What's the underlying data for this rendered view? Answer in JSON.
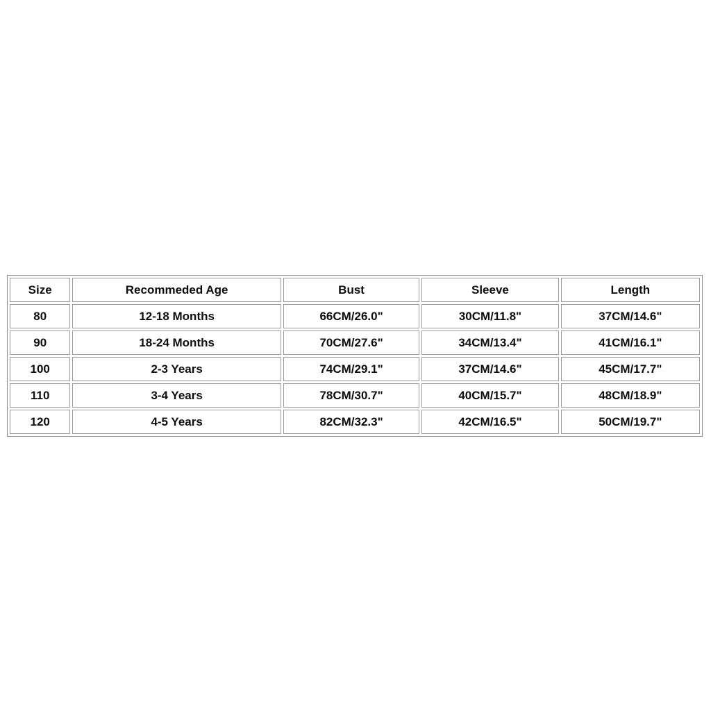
{
  "colors": {
    "background": "#ffffff",
    "border_outer": "#8f8f8f",
    "border_cell": "#9a9a9a",
    "text": "#0d0d0d"
  },
  "chart_data": {
    "type": "table",
    "title": "",
    "columns": [
      "Size",
      "Recommeded Age",
      "Bust",
      "Sleeve",
      "Length"
    ],
    "rows": [
      [
        "80",
        "12-18 Months",
        "66CM/26.0\"",
        "30CM/11.8\"",
        "37CM/14.6\""
      ],
      [
        "90",
        "18-24 Months",
        "70CM/27.6\"",
        "34CM/13.4\"",
        "41CM/16.1\""
      ],
      [
        "100",
        "2-3 Years",
        "74CM/29.1\"",
        "37CM/14.6\"",
        "45CM/17.7\""
      ],
      [
        "110",
        "3-4 Years",
        "78CM/30.7\"",
        "40CM/15.7\"",
        "48CM/18.9\""
      ],
      [
        "120",
        "4-5 Years",
        "82CM/32.3\"",
        "42CM/16.5\"",
        "50CM/19.7\""
      ]
    ]
  }
}
